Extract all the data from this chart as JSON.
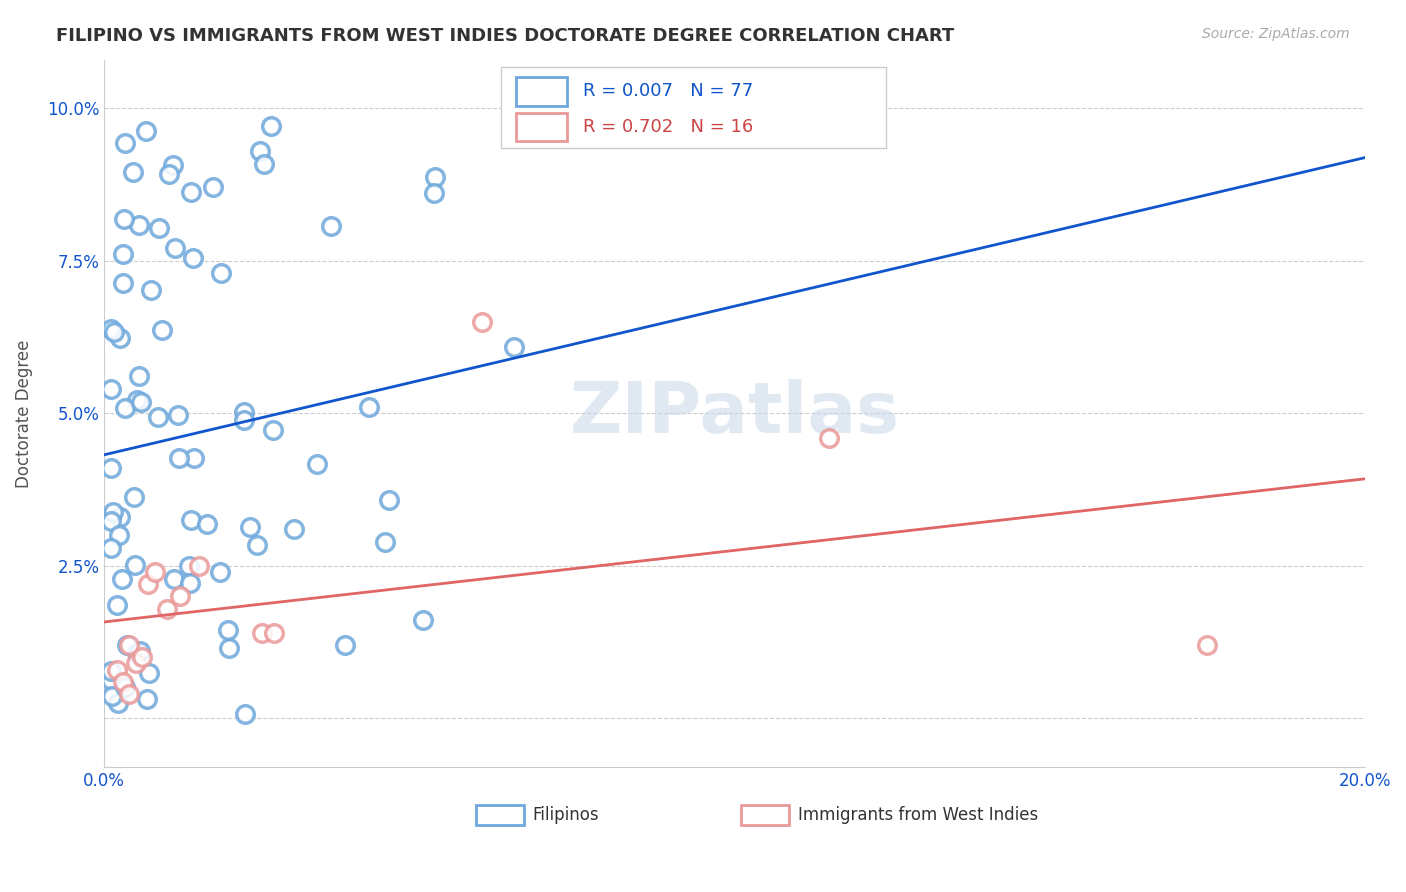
{
  "title": "FILIPINO VS IMMIGRANTS FROM WEST INDIES DOCTORATE DEGREE CORRELATION CHART",
  "source": "Source: ZipAtlas.com",
  "xlabel_filipinos": "Filipinos",
  "xlabel_west_indies": "Immigrants from West Indies",
  "ylabel": "Doctorate Degree",
  "watermark": "ZIPatlas",
  "xlim": [
    0.0,
    0.2
  ],
  "ylim": [
    -0.008,
    0.108
  ],
  "yticks": [
    0.0,
    0.025,
    0.05,
    0.075,
    0.1
  ],
  "ytick_labels": [
    "",
    "2.5%",
    "5.0%",
    "7.5%",
    "10.0%"
  ],
  "xticks": [
    0.0,
    0.05,
    0.1,
    0.15,
    0.2
  ],
  "xtick_labels": [
    "0.0%",
    "",
    "",
    "",
    "20.0%"
  ],
  "filipino_R": 0.007,
  "filipino_N": 77,
  "west_indies_R": 0.702,
  "west_indies_N": 16,
  "filipino_color": "#6fa8dc",
  "west_indies_color": "#ea9999",
  "regression_blue_color": "#1155cc",
  "regression_pink_color": "#e06666",
  "regression_dashed_color": "#cc99aa"
}
